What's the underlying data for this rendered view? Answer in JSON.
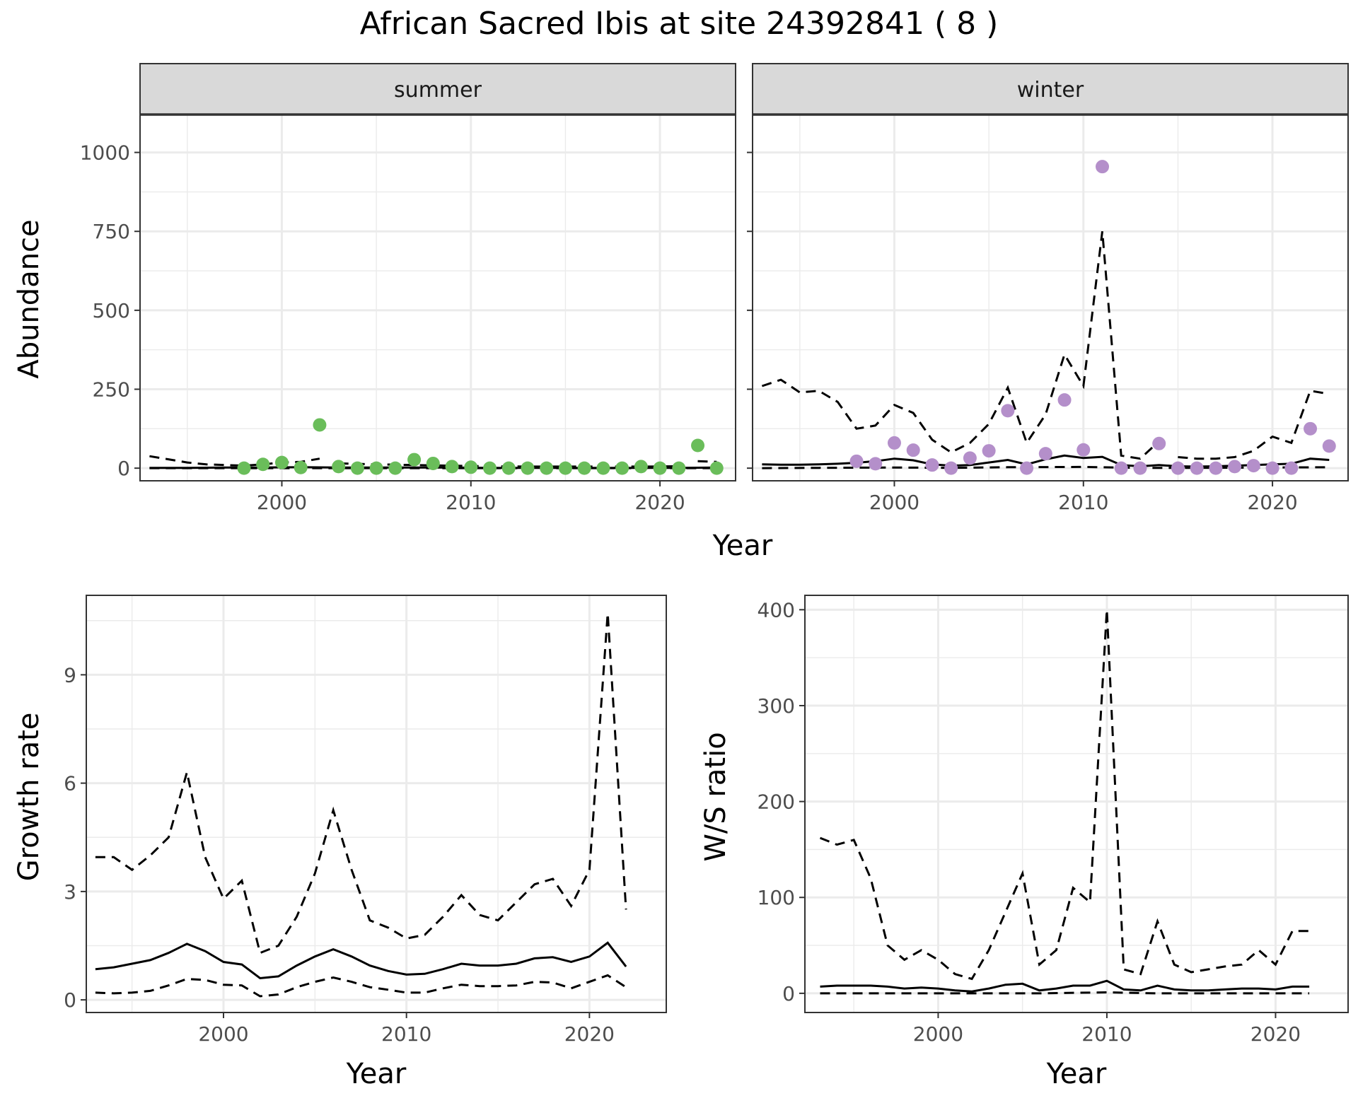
{
  "title": "African Sacred Ibis at site 24392841 ( 8 )",
  "colors": {
    "summer_points": "#6abd5a",
    "winter_points": "#b48fca",
    "lines": "#000000",
    "strip_bg": "#d9d9d9",
    "grid": "#ebebeb"
  },
  "chart_data": [
    {
      "type": "scatter",
      "facet": "summer",
      "xlabel": "Year",
      "ylabel": "Abundance",
      "xlim": [
        1992.5,
        2024
      ],
      "ylim": [
        -40,
        1120
      ],
      "xticks": [
        2000,
        2010,
        2020
      ],
      "yticks": [
        0,
        250,
        500,
        750,
        1000
      ],
      "grid": true,
      "points": {
        "x": [
          1998,
          1999,
          2000,
          2001,
          2002,
          2003,
          2004,
          2005,
          2006,
          2007,
          2008,
          2009,
          2010,
          2011,
          2012,
          2013,
          2014,
          2015,
          2016,
          2017,
          2018,
          2019,
          2020,
          2021,
          2022,
          2023
        ],
        "y": [
          0,
          12,
          18,
          2,
          137,
          5,
          0,
          0,
          0,
          27,
          15,
          5,
          3,
          0,
          0,
          0,
          0,
          0,
          0,
          0,
          0,
          5,
          0,
          0,
          72,
          0
        ]
      },
      "estimate": {
        "x": [
          1993,
          1995,
          1997,
          1999,
          2001,
          2003,
          2005,
          2007,
          2009,
          2011,
          2013,
          2015,
          2017,
          2019,
          2021,
          2023
        ],
        "y": [
          1,
          1,
          2,
          2,
          3,
          2,
          2,
          2,
          2,
          1,
          1,
          1,
          1,
          1,
          1,
          2
        ]
      },
      "upper": [
        {
          "x": [
            1993,
            1994,
            1995,
            1996,
            1997,
            1998,
            1999,
            2000,
            2001,
            2002
          ],
          "y": [
            38,
            28,
            18,
            12,
            10,
            8,
            12,
            18,
            20,
            30
          ]
        },
        {
          "x": [
            2003,
            2005,
            2007,
            2009,
            2011,
            2013,
            2015,
            2017,
            2019,
            2021
          ],
          "y": [
            15,
            12,
            10,
            8,
            6,
            5,
            5,
            5,
            5,
            6
          ]
        },
        {
          "x": [
            2022,
            2023
          ],
          "y": [
            22,
            20
          ]
        }
      ],
      "lower": {
        "x": [
          1993,
          2000,
          2010,
          2023
        ],
        "y": [
          0,
          0,
          0,
          0
        ]
      }
    },
    {
      "type": "scatter",
      "facet": "winter",
      "xlabel": "Year",
      "ylabel": "Abundance",
      "xlim": [
        1992.5,
        2024
      ],
      "ylim": [
        -40,
        1120
      ],
      "xticks": [
        2000,
        2010,
        2020
      ],
      "yticks": [
        0,
        250,
        500,
        750,
        1000
      ],
      "grid": true,
      "points": {
        "x": [
          1998,
          1999,
          2000,
          2001,
          2002,
          2003,
          2004,
          2005,
          2006,
          2007,
          2008,
          2009,
          2010,
          2011,
          2012,
          2013,
          2014,
          2015,
          2016,
          2017,
          2018,
          2019,
          2020,
          2021,
          2022,
          2023
        ],
        "y": [
          22,
          14,
          80,
          57,
          10,
          0,
          32,
          55,
          182,
          0,
          46,
          216,
          58,
          955,
          0,
          0,
          78,
          0,
          0,
          0,
          5,
          8,
          0,
          0,
          125,
          70
        ]
      },
      "estimate": {
        "x": [
          1993,
          1994,
          1995,
          1996,
          1997,
          1998,
          1999,
          2000,
          2001,
          2002,
          2003,
          2004,
          2005,
          2006,
          2007,
          2008,
          2009,
          2010,
          2011,
          2012,
          2013,
          2014,
          2015,
          2016,
          2017,
          2018,
          2019,
          2020,
          2021,
          2022,
          2023
        ],
        "y": [
          12,
          11,
          11,
          12,
          14,
          17,
          22,
          30,
          25,
          12,
          8,
          10,
          18,
          26,
          12,
          28,
          40,
          32,
          36,
          10,
          6,
          10,
          6,
          5,
          6,
          8,
          10,
          12,
          14,
          30,
          26
        ]
      },
      "upper": [
        {
          "x": [
            1993,
            1994,
            1995,
            1996,
            1997,
            1998,
            1999,
            2000,
            2001,
            2002,
            2003,
            2004,
            2005,
            2006,
            2007,
            2008,
            2009,
            2010,
            2011,
            2012,
            2013,
            2014
          ],
          "y": [
            260,
            280,
            240,
            245,
            210,
            125,
            135,
            200,
            175,
            90,
            50,
            80,
            140,
            255,
            80,
            170,
            360,
            260,
            750,
            40,
            30,
            85
          ]
        },
        {
          "x": [
            2015,
            2016,
            2017,
            2018,
            2019,
            2020,
            2021,
            2022,
            2023
          ],
          "y": [
            35,
            30,
            30,
            35,
            55,
            100,
            80,
            245,
            235
          ]
        }
      ],
      "lower": {
        "x": [
          1993,
          1996,
          2000,
          2003,
          2006,
          2010,
          2013,
          2016,
          2020,
          2023
        ],
        "y": [
          0,
          1,
          2,
          1,
          3,
          4,
          1,
          1,
          2,
          3
        ]
      }
    },
    {
      "type": "line",
      "xlabel": "Year",
      "ylabel": "Growth rate",
      "xlim": [
        1992.5,
        2024.2
      ],
      "ylim": [
        -0.35,
        11.2
      ],
      "xticks": [
        2000,
        2010,
        2020
      ],
      "yticks": [
        0,
        3,
        6,
        9
      ],
      "grid": true,
      "estimate": {
        "x": [
          1993,
          1994,
          1995,
          1996,
          1997,
          1998,
          1999,
          2000,
          2001,
          2002,
          2003,
          2004,
          2005,
          2006,
          2007,
          2008,
          2009,
          2010,
          2011,
          2012,
          2013,
          2014,
          2015,
          2016,
          2017,
          2018,
          2019,
          2020,
          2021,
          2022
        ],
        "y": [
          0.85,
          0.9,
          1.0,
          1.1,
          1.3,
          1.55,
          1.35,
          1.05,
          0.98,
          0.6,
          0.65,
          0.95,
          1.2,
          1.4,
          1.2,
          0.95,
          0.8,
          0.7,
          0.72,
          0.85,
          1.0,
          0.95,
          0.95,
          1.0,
          1.15,
          1.18,
          1.05,
          1.2,
          1.58,
          0.92
        ]
      },
      "upper": {
        "x": [
          1993,
          1994,
          1995,
          1996,
          1997,
          1998,
          1999,
          2000,
          2001,
          2002,
          2003,
          2004,
          2005,
          2006,
          2007,
          2008,
          2009,
          2010,
          2011,
          2012,
          2013,
          2014,
          2015,
          2016,
          2017,
          2018,
          2019,
          2020,
          2021,
          2022
        ],
        "y": [
          3.95,
          3.95,
          3.6,
          4.0,
          4.5,
          6.3,
          3.95,
          2.8,
          3.3,
          1.3,
          1.5,
          2.3,
          3.5,
          5.25,
          3.6,
          2.2,
          2.0,
          1.7,
          1.8,
          2.3,
          2.9,
          2.35,
          2.2,
          2.7,
          3.2,
          3.35,
          2.6,
          3.6,
          10.7,
          2.5
        ]
      },
      "lower": {
        "x": [
          1993,
          1994,
          1995,
          1996,
          1997,
          1998,
          1999,
          2000,
          2001,
          2002,
          2003,
          2004,
          2005,
          2006,
          2007,
          2008,
          2009,
          2010,
          2011,
          2012,
          2013,
          2014,
          2015,
          2016,
          2017,
          2018,
          2019,
          2020,
          2021,
          2022
        ],
        "y": [
          0.2,
          0.18,
          0.2,
          0.25,
          0.4,
          0.58,
          0.55,
          0.42,
          0.4,
          0.1,
          0.15,
          0.35,
          0.5,
          0.62,
          0.5,
          0.35,
          0.28,
          0.2,
          0.2,
          0.32,
          0.42,
          0.38,
          0.38,
          0.4,
          0.5,
          0.48,
          0.32,
          0.5,
          0.68,
          0.35
        ]
      }
    },
    {
      "type": "line",
      "xlabel": "Year",
      "ylabel": "W/S ratio",
      "xlim": [
        1992.1,
        2024.3
      ],
      "ylim": [
        -20,
        415
      ],
      "xticks": [
        2000,
        2010,
        2020
      ],
      "yticks": [
        0,
        100,
        200,
        300,
        400
      ],
      "grid": true,
      "estimate": {
        "x": [
          1993,
          1994,
          1995,
          1996,
          1997,
          1998,
          1999,
          2000,
          2001,
          2002,
          2003,
          2004,
          2005,
          2006,
          2007,
          2008,
          2009,
          2010,
          2011,
          2012,
          2013,
          2014,
          2015,
          2016,
          2017,
          2018,
          2019,
          2020,
          2021,
          2022
        ],
        "y": [
          7,
          8,
          8,
          8,
          7,
          5,
          6,
          5,
          3,
          2,
          5,
          9,
          10,
          3,
          5,
          8,
          8,
          13,
          4,
          3,
          8,
          4,
          3,
          3,
          4,
          5,
          5,
          4,
          7,
          7
        ]
      },
      "upper": {
        "x": [
          1993,
          1994,
          1995,
          1996,
          1997,
          1998,
          1999,
          2000,
          2001,
          2002,
          2003,
          2004,
          2005,
          2006,
          2007,
          2008,
          2009,
          2010,
          2011,
          2012,
          2013,
          2014,
          2015,
          2016,
          2017,
          2018,
          2019,
          2020,
          2021,
          2022
        ],
        "y": [
          162,
          155,
          160,
          120,
          50,
          35,
          45,
          35,
          20,
          15,
          45,
          85,
          125,
          30,
          45,
          110,
          95,
          400,
          25,
          20,
          75,
          30,
          22,
          25,
          28,
          30,
          45,
          30,
          65,
          65
        ]
      },
      "lower": {
        "x": [
          1993,
          1996,
          2000,
          2003,
          2006,
          2010,
          2013,
          2016,
          2020,
          2022
        ],
        "y": [
          0,
          0,
          0,
          0,
          0,
          1,
          0,
          0,
          0,
          0
        ]
      }
    }
  ]
}
